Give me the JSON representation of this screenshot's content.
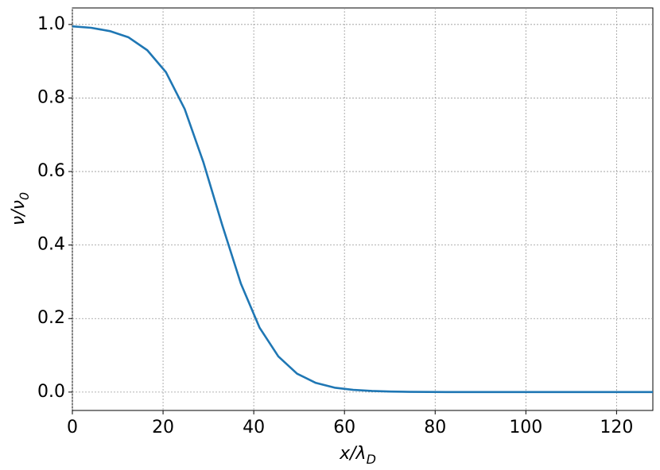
{
  "chart_data": {
    "type": "line",
    "xlabel": "x/λ",
    "xlabel_sub": "D",
    "ylabel": "ν/ν",
    "ylabel_sub": "0",
    "x": [
      0,
      4.13,
      8.26,
      12.39,
      16.52,
      20.65,
      24.77,
      28.9,
      33.03,
      37.16,
      41.29,
      45.42,
      49.55,
      53.68,
      57.81,
      61.94,
      66.06,
      70.19,
      74.32,
      78.45,
      82.58,
      86.71,
      90.84,
      94.97,
      99.1,
      103.23,
      107.35,
      111.48,
      115.61,
      119.74,
      123.87,
      128
    ],
    "series": [
      {
        "name": "ν",
        "color": "#1f77b4",
        "values": [
          0.995,
          0.991,
          0.982,
          0.965,
          0.93,
          0.87,
          0.77,
          0.625,
          0.455,
          0.295,
          0.175,
          0.097,
          0.05,
          0.025,
          0.012,
          0.006,
          0.003,
          0.0014,
          0.0007,
          0.0003,
          0.0001,
          0,
          0,
          0,
          0,
          0,
          0,
          0,
          0,
          0,
          0,
          0
        ]
      }
    ],
    "xlim": [
      0,
      128
    ],
    "ylim": [
      -0.05,
      1.045
    ],
    "xticks": [
      0,
      20,
      40,
      60,
      80,
      100,
      120
    ],
    "yticks": [
      {
        "value": 0,
        "label": "0.0"
      },
      0.2,
      0.4,
      0.6,
      0.8,
      {
        "value": 1,
        "label": "1.0"
      }
    ],
    "grid": true
  }
}
